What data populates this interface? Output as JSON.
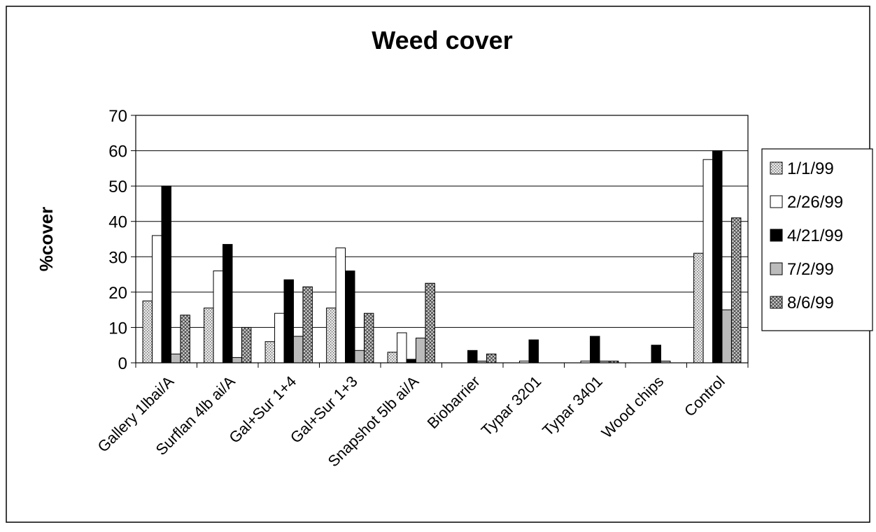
{
  "chart_data": {
    "type": "bar",
    "title": "Weed cover",
    "ylabel": "%cover",
    "xlabel": "",
    "ylim": [
      0,
      70
    ],
    "yticks": [
      0,
      10,
      20,
      30,
      40,
      50,
      60,
      70
    ],
    "grid": "horizontal",
    "legend_position": "right",
    "categories": [
      "Gallery 1lbai/A",
      "Surflan 4lb ai/A",
      "Gal+Sur 1+4",
      "Gal+Sur 1+3",
      "Snapshot 5lb ai/A",
      "Biobarrier",
      "Typar 3201",
      "Typar 3401",
      "Wood chips",
      "Control"
    ],
    "series": [
      {
        "name": "1/1/99",
        "color": "#cccccc",
        "pattern": "dots",
        "values": [
          17.5,
          15.5,
          6,
          15.5,
          3,
          0,
          0,
          0,
          0,
          31
        ]
      },
      {
        "name": "2/26/99",
        "color": "#ffffff",
        "pattern": "solid",
        "values": [
          36,
          26,
          14,
          32.5,
          8.5,
          0,
          0.5,
          0.5,
          0,
          57.5
        ]
      },
      {
        "name": "4/21/99",
        "color": "#000000",
        "pattern": "solid",
        "values": [
          50,
          33.5,
          23.5,
          26,
          1,
          3.5,
          6.5,
          7.5,
          5,
          60
        ]
      },
      {
        "name": "7/2/99",
        "color": "#bbbbbb",
        "pattern": "solid",
        "values": [
          2.5,
          1.5,
          7.5,
          3.5,
          7,
          0.5,
          0,
          0.5,
          0.5,
          15
        ]
      },
      {
        "name": "8/6/99",
        "color": "#aaaaaa",
        "pattern": "crosshatch",
        "values": [
          13.5,
          10,
          21.5,
          14,
          22.5,
          2.5,
          0,
          0.5,
          0,
          41
        ]
      }
    ]
  }
}
